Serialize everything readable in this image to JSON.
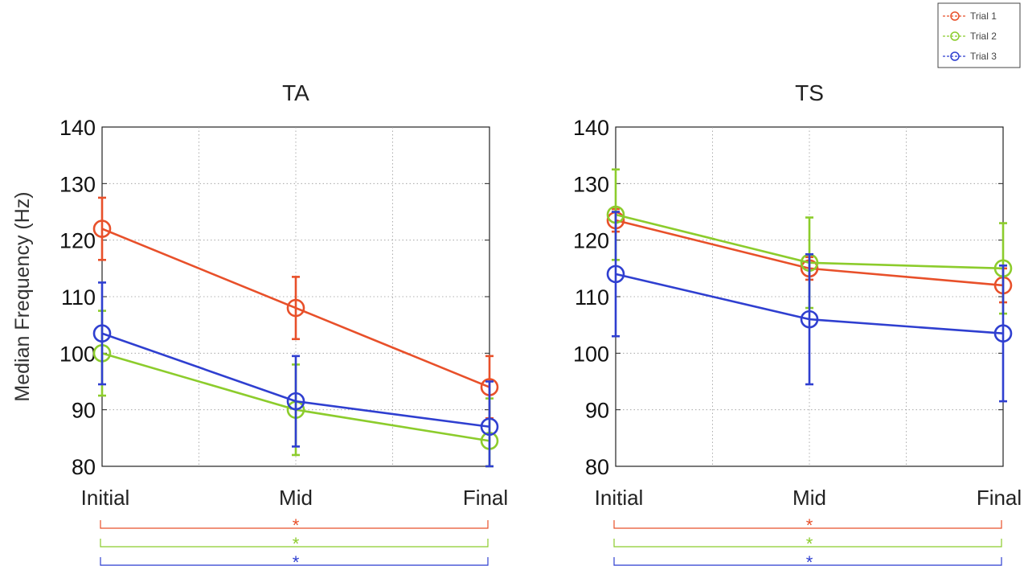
{
  "legend": {
    "entries": [
      "Trial 1",
      "Trial 2",
      "Trial 3"
    ]
  },
  "colors": {
    "Trial 1": "#e8502a",
    "Trial 2": "#8ccc2c",
    "Trial 3": "#2f3fd0"
  },
  "chart_data": [
    {
      "type": "line",
      "title": "TA",
      "xlabel": "",
      "ylabel": "Median Frequency (Hz)",
      "categories": [
        "Initial",
        "Mid",
        "Final"
      ],
      "ylim": [
        80,
        140
      ],
      "yticks": [
        80,
        90,
        100,
        110,
        120,
        130,
        140
      ],
      "grid": true,
      "series": [
        {
          "name": "Trial 1",
          "values": [
            122,
            108,
            94
          ],
          "errors": [
            5.5,
            5.5,
            5.5
          ]
        },
        {
          "name": "Trial 2",
          "values": [
            100,
            90,
            84.5
          ],
          "errors": [
            7.5,
            8,
            7.5
          ]
        },
        {
          "name": "Trial 3",
          "values": [
            103.5,
            91.5,
            87
          ],
          "errors": [
            9,
            8,
            8
          ]
        }
      ],
      "significance": [
        "*",
        "*",
        "*"
      ]
    },
    {
      "type": "line",
      "title": "TS",
      "xlabel": "",
      "ylabel": "",
      "categories": [
        "Initial",
        "Mid",
        "Final"
      ],
      "ylim": [
        80,
        140
      ],
      "yticks": [
        80,
        90,
        100,
        110,
        120,
        130,
        140
      ],
      "grid": true,
      "series": [
        {
          "name": "Trial 1",
          "values": [
            123.5,
            115,
            112
          ],
          "errors": [
            2,
            2,
            3
          ]
        },
        {
          "name": "Trial 2",
          "values": [
            124.5,
            116,
            115
          ],
          "errors": [
            8,
            8,
            8
          ]
        },
        {
          "name": "Trial 3",
          "values": [
            114,
            106,
            103.5
          ],
          "errors": [
            11,
            11.5,
            12
          ]
        }
      ],
      "significance": [
        "*",
        "*",
        "*"
      ]
    }
  ]
}
